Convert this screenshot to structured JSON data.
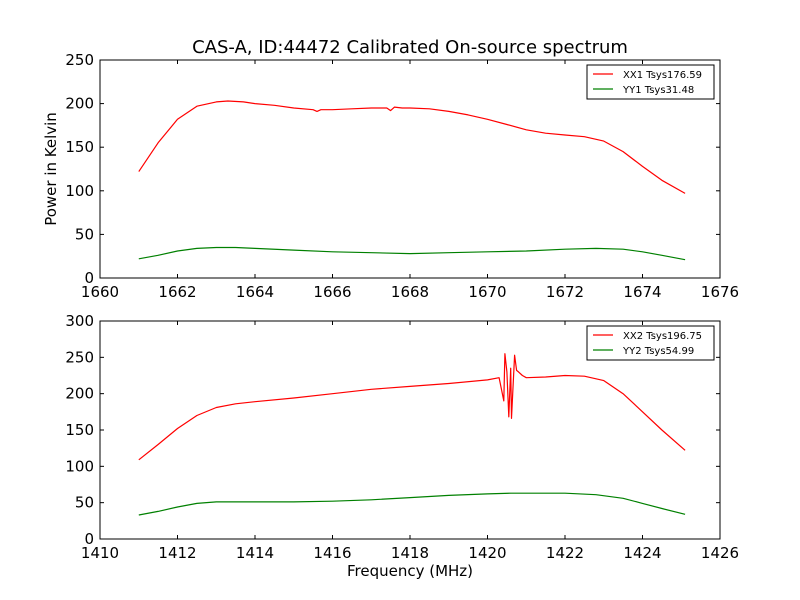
{
  "title": "CAS-A, ID:44472 Calibrated On-source spectrum",
  "chart_data": [
    {
      "type": "line",
      "xlabel": "",
      "ylabel": "Power in Kelvin",
      "xlim": [
        1660,
        1676
      ],
      "ylim": [
        0,
        250
      ],
      "xticks": [
        "1660",
        "1662",
        "1664",
        "1666",
        "1668",
        "1670",
        "1672",
        "1674",
        "1676"
      ],
      "yticks": [
        "0",
        "50",
        "100",
        "150",
        "200",
        "250"
      ],
      "legend_position": "top-right",
      "series": [
        {
          "name": "XX1 Tsys176.59",
          "color": "#ff0000",
          "x": [
            1661.0,
            1661.5,
            1662.0,
            1662.5,
            1663.0,
            1663.3,
            1663.7,
            1664.0,
            1664.5,
            1665.0,
            1665.5,
            1665.6,
            1665.7,
            1666.0,
            1666.5,
            1667.0,
            1667.4,
            1667.5,
            1667.6,
            1667.8,
            1668.0,
            1668.5,
            1669.0,
            1669.5,
            1670.0,
            1670.5,
            1671.0,
            1671.5,
            1672.0,
            1672.5,
            1673.0,
            1673.5,
            1674.0,
            1674.5,
            1675.1
          ],
          "y": [
            122,
            155,
            182,
            197,
            202,
            203,
            202,
            200,
            198,
            195,
            193,
            191,
            193,
            193,
            194,
            195,
            195,
            192,
            196,
            195,
            195,
            194,
            191,
            187,
            182,
            176,
            170,
            166,
            164,
            162,
            157,
            145,
            128,
            112,
            97
          ]
        },
        {
          "name": "YY1 Tsys31.48",
          "color": "#008000",
          "x": [
            1661.0,
            1661.5,
            1662.0,
            1662.5,
            1663.0,
            1663.5,
            1664.0,
            1665.0,
            1666.0,
            1667.0,
            1668.0,
            1669.0,
            1670.0,
            1671.0,
            1672.0,
            1672.8,
            1673.5,
            1674.0,
            1674.5,
            1675.1
          ],
          "y": [
            22,
            26,
            31,
            34,
            35,
            35,
            34,
            32,
            30,
            29,
            28,
            29,
            30,
            31,
            33,
            34,
            33,
            30,
            26,
            21
          ]
        }
      ]
    },
    {
      "type": "line",
      "xlabel": "Frequency (MHz)",
      "ylabel": "",
      "xlim": [
        1410,
        1426
      ],
      "ylim": [
        0,
        300
      ],
      "xticks": [
        "1410",
        "1412",
        "1414",
        "1416",
        "1418",
        "1420",
        "1422",
        "1424",
        "1426"
      ],
      "yticks": [
        "0",
        "50",
        "100",
        "150",
        "200",
        "250",
        "300"
      ],
      "legend_position": "top-right",
      "series": [
        {
          "name": "XX2 Tsys196.75",
          "color": "#ff0000",
          "x": [
            1411.0,
            1411.5,
            1412.0,
            1412.5,
            1413.0,
            1413.5,
            1414.0,
            1415.0,
            1416.0,
            1417.0,
            1418.0,
            1419.0,
            1420.0,
            1420.3,
            1420.42,
            1420.45,
            1420.5,
            1420.55,
            1420.6,
            1420.62,
            1420.65,
            1420.7,
            1420.75,
            1420.8,
            1420.9,
            1421.0,
            1421.5,
            1422.0,
            1422.5,
            1423.0,
            1423.5,
            1424.0,
            1424.5,
            1425.1
          ],
          "y": [
            109,
            130,
            152,
            170,
            181,
            186,
            189,
            194,
            200,
            206,
            210,
            214,
            219,
            222,
            190,
            255,
            230,
            168,
            235,
            166,
            200,
            253,
            232,
            230,
            225,
            222,
            223,
            225,
            224,
            218,
            200,
            175,
            150,
            122
          ]
        },
        {
          "name": "YY2 Tsys54.99",
          "color": "#008000",
          "x": [
            1411.0,
            1411.5,
            1412.0,
            1412.5,
            1413.0,
            1414.0,
            1415.0,
            1416.0,
            1417.0,
            1418.0,
            1419.0,
            1420.0,
            1420.6,
            1421.0,
            1422.0,
            1422.8,
            1423.5,
            1424.0,
            1424.5,
            1425.1
          ],
          "y": [
            33,
            38,
            44,
            49,
            51,
            51,
            51,
            52,
            54,
            57,
            60,
            62,
            63,
            63,
            63,
            61,
            56,
            49,
            42,
            34
          ]
        }
      ]
    }
  ]
}
